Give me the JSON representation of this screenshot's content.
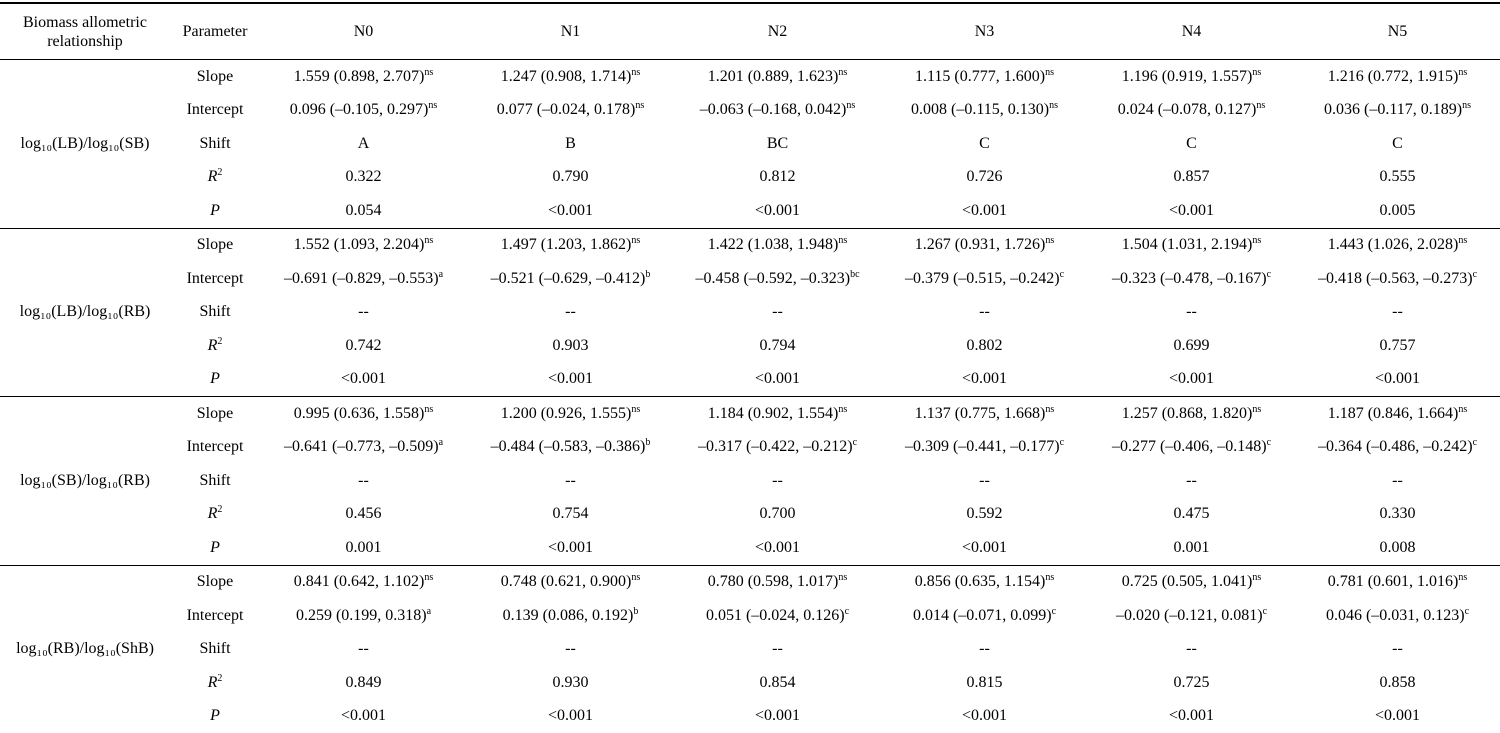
{
  "table": {
    "header": [
      "Biomass allometric relationship",
      "Parameter",
      "N0",
      "N1",
      "N2",
      "N3",
      "N4",
      "N5"
    ],
    "groups": [
      {
        "relationship": "log₁₀(LB)/log₁₀(SB)",
        "rows": [
          {
            "parameter": "Slope",
            "cells": [
              {
                "text": "1.559 (0.898, 2.707)",
                "sup": "ns"
              },
              {
                "text": "1.247 (0.908, 1.714)",
                "sup": "ns"
              },
              {
                "text": "1.201 (0.889, 1.623)",
                "sup": "ns"
              },
              {
                "text": "1.115 (0.777, 1.600)",
                "sup": "ns"
              },
              {
                "text": "1.196 (0.919, 1.557)",
                "sup": "ns"
              },
              {
                "text": "1.216 (0.772, 1.915)",
                "sup": "ns"
              }
            ]
          },
          {
            "parameter": "Intercept",
            "cells": [
              {
                "text": "0.096 (–0.105, 0.297)",
                "sup": "ns"
              },
              {
                "text": "0.077 (–0.024, 0.178)",
                "sup": "ns"
              },
              {
                "text": "–0.063 (–0.168, 0.042)",
                "sup": "ns"
              },
              {
                "text": "0.008 (–0.115, 0.130)",
                "sup": "ns"
              },
              {
                "text": "0.024 (–0.078, 0.127)",
                "sup": "ns"
              },
              {
                "text": "0.036 (–0.117, 0.189)",
                "sup": "ns"
              }
            ]
          },
          {
            "parameter": "Shift",
            "cells": [
              "A",
              "B",
              "BC",
              "C",
              "C",
              "C"
            ]
          },
          {
            "parameter": {
              "text": "R",
              "sup": "2",
              "italic": true
            },
            "cells": [
              "0.322",
              "0.790",
              "0.812",
              "0.726",
              "0.857",
              "0.555"
            ]
          },
          {
            "parameter": {
              "text": "P",
              "italic": true
            },
            "cells": [
              "0.054",
              "<0.001",
              "<0.001",
              "<0.001",
              "<0.001",
              "0.005"
            ]
          }
        ]
      },
      {
        "relationship": "log₁₀(LB)/log₁₀(RB)",
        "rows": [
          {
            "parameter": "Slope",
            "cells": [
              {
                "text": "1.552 (1.093, 2.204)",
                "sup": "ns"
              },
              {
                "text": "1.497 (1.203, 1.862)",
                "sup": "ns"
              },
              {
                "text": "1.422 (1.038, 1.948)",
                "sup": "ns"
              },
              {
                "text": "1.267 (0.931, 1.726)",
                "sup": "ns"
              },
              {
                "text": "1.504 (1.031, 2.194)",
                "sup": "ns"
              },
              {
                "text": "1.443 (1.026, 2.028)",
                "sup": "ns"
              }
            ]
          },
          {
            "parameter": "Intercept",
            "cells": [
              {
                "text": "–0.691 (–0.829, –0.553)",
                "sup": "a"
              },
              {
                "text": "–0.521 (–0.629, –0.412)",
                "sup": "b"
              },
              {
                "text": "–0.458 (–0.592, –0.323)",
                "sup": "bc"
              },
              {
                "text": "–0.379 (–0.515, –0.242)",
                "sup": "c"
              },
              {
                "text": "–0.323 (–0.478, –0.167)",
                "sup": "c"
              },
              {
                "text": "–0.418 (–0.563, –0.273)",
                "sup": "c"
              }
            ]
          },
          {
            "parameter": "Shift",
            "cells": [
              "--",
              "--",
              "--",
              "--",
              "--",
              "--"
            ]
          },
          {
            "parameter": {
              "text": "R",
              "sup": "2",
              "italic": true
            },
            "cells": [
              "0.742",
              "0.903",
              "0.794",
              "0.802",
              "0.699",
              "0.757"
            ]
          },
          {
            "parameter": {
              "text": "P",
              "italic": true
            },
            "cells": [
              "<0.001",
              "<0.001",
              "<0.001",
              "<0.001",
              "<0.001",
              "<0.001"
            ]
          }
        ]
      },
      {
        "relationship": "log₁₀(SB)/log₁₀(RB)",
        "rows": [
          {
            "parameter": "Slope",
            "cells": [
              {
                "text": "0.995 (0.636, 1.558)",
                "sup": "ns"
              },
              {
                "text": "1.200 (0.926, 1.555)",
                "sup": "ns"
              },
              {
                "text": "1.184 (0.902, 1.554)",
                "sup": "ns"
              },
              {
                "text": "1.137 (0.775, 1.668)",
                "sup": "ns"
              },
              {
                "text": "1.257 (0.868, 1.820)",
                "sup": "ns"
              },
              {
                "text": "1.187 (0.846, 1.664)",
                "sup": "ns"
              }
            ]
          },
          {
            "parameter": "Intercept",
            "cells": [
              {
                "text": "–0.641 (–0.773, –0.509)",
                "sup": "a"
              },
              {
                "text": "–0.484 (–0.583, –0.386)",
                "sup": "b"
              },
              {
                "text": "–0.317 (–0.422, –0.212)",
                "sup": "c"
              },
              {
                "text": "–0.309 (–0.441, –0.177)",
                "sup": "c"
              },
              {
                "text": "–0.277 (–0.406, –0.148)",
                "sup": "c"
              },
              {
                "text": "–0.364 (–0.486, –0.242)",
                "sup": "c"
              }
            ]
          },
          {
            "parameter": "Shift",
            "cells": [
              "--",
              "--",
              "--",
              "--",
              "--",
              "--"
            ]
          },
          {
            "parameter": {
              "text": "R",
              "sup": "2",
              "italic": true
            },
            "cells": [
              "0.456",
              "0.754",
              "0.700",
              "0.592",
              "0.475",
              "0.330"
            ]
          },
          {
            "parameter": {
              "text": "P",
              "italic": true
            },
            "cells": [
              "0.001",
              "<0.001",
              "<0.001",
              "<0.001",
              "0.001",
              "0.008"
            ]
          }
        ]
      },
      {
        "relationship": "log₁₀(RB)/log₁₀(ShB)",
        "rows": [
          {
            "parameter": "Slope",
            "cells": [
              {
                "text": "0.841 (0.642, 1.102)",
                "sup": "ns"
              },
              {
                "text": "0.748 (0.621, 0.900)",
                "sup": "ns"
              },
              {
                "text": "0.780 (0.598, 1.017)",
                "sup": "ns"
              },
              {
                "text": "0.856 (0.635, 1.154)",
                "sup": "ns"
              },
              {
                "text": "0.725 (0.505, 1.041)",
                "sup": "ns"
              },
              {
                "text": "0.781 (0.601, 1.016)",
                "sup": "ns"
              }
            ]
          },
          {
            "parameter": "Intercept",
            "cells": [
              {
                "text": "0.259 (0.199, 0.318)",
                "sup": "a"
              },
              {
                "text": "0.139 (0.086, 0.192)",
                "sup": "b"
              },
              {
                "text": "0.051 (–0.024, 0.126)",
                "sup": "c"
              },
              {
                "text": "0.014 (–0.071, 0.099)",
                "sup": "c"
              },
              {
                "text": "–0.020 (–0.121, 0.081)",
                "sup": "c"
              },
              {
                "text": "0.046 (–0.031, 0.123)",
                "sup": "c"
              }
            ]
          },
          {
            "parameter": "Shift",
            "cells": [
              "--",
              "--",
              "--",
              "--",
              "--",
              "--"
            ]
          },
          {
            "parameter": {
              "text": "R",
              "sup": "2",
              "italic": true
            },
            "cells": [
              "0.849",
              "0.930",
              "0.854",
              "0.815",
              "0.725",
              "0.858"
            ]
          },
          {
            "parameter": {
              "text": "P",
              "italic": true
            },
            "cells": [
              "<0.001",
              "<0.001",
              "<0.001",
              "<0.001",
              "<0.001",
              "<0.001"
            ]
          }
        ]
      }
    ]
  }
}
